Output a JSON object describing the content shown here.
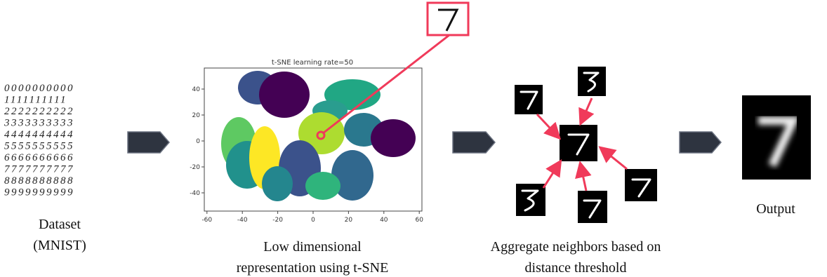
{
  "dataset": {
    "digit_rows": [
      "0000000000",
      "1111111111",
      "2222222222",
      "3333333333",
      "4444444444",
      "5555555555",
      "6666666666",
      "7777777777",
      "8888888888",
      "9999999999"
    ],
    "label_line1": "Dataset",
    "label_line2": "(MNIST)"
  },
  "tsne": {
    "title": "t-SNE learning rate=50",
    "xticks": [
      -60,
      -40,
      -20,
      0,
      20,
      40,
      60
    ],
    "yticks": [
      40,
      20,
      0,
      -20,
      -40
    ],
    "caption_line1": "Low dimensional",
    "caption_line2": "representation using t-SNE"
  },
  "aggregate": {
    "caption_line1": "Aggregate neighbors based on",
    "caption_line2": "distance threshold"
  },
  "output": {
    "label": "Output"
  }
}
